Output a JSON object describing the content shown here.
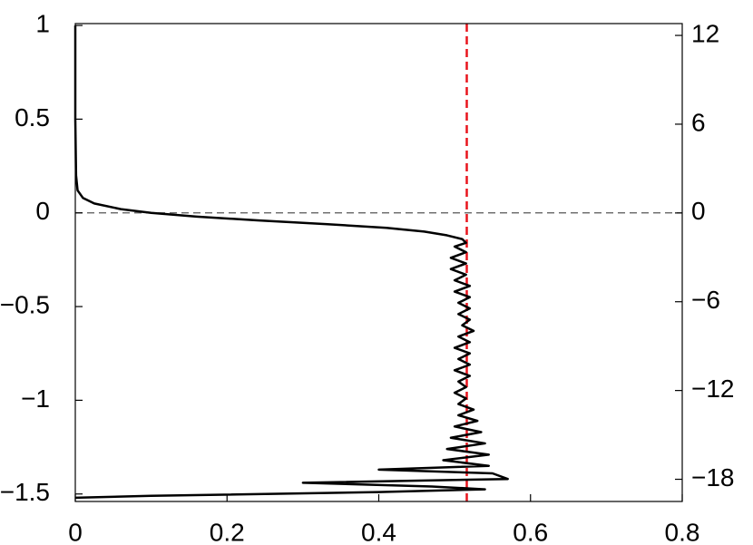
{
  "chart_data": {
    "type": "line",
    "x": [
      0,
      0,
      0.001,
      0.003,
      0.01,
      0.025,
      0.06,
      0.1,
      0.16,
      0.24,
      0.33,
      0.41,
      0.46,
      0.49,
      0.51,
      0.515,
      0.5,
      0.515,
      0.495,
      0.515,
      0.495,
      0.515,
      0.5,
      0.52,
      0.5,
      0.52,
      0.505,
      0.52,
      0.505,
      0.52,
      0.51,
      0.525,
      0.505,
      0.52,
      0.5,
      0.52,
      0.505,
      0.52,
      0.5,
      0.52,
      0.505,
      0.515,
      0.5,
      0.515,
      0.505,
      0.525,
      0.505,
      0.53,
      0.5,
      0.535,
      0.495,
      0.54,
      0.49,
      0.545,
      0.485,
      0.545,
      0.4,
      0.55,
      0.57,
      0.3,
      0.47,
      0.54,
      0.4,
      0.1,
      0
    ],
    "values": [
      1,
      0.5,
      0.2,
      0.12,
      0.08,
      0.05,
      0.02,
      0,
      -0.02,
      -0.04,
      -0.06,
      -0.08,
      -0.1,
      -0.12,
      -0.14,
      -0.16,
      -0.18,
      -0.21,
      -0.24,
      -0.27,
      -0.3,
      -0.33,
      -0.36,
      -0.39,
      -0.42,
      -0.45,
      -0.48,
      -0.51,
      -0.54,
      -0.57,
      -0.6,
      -0.63,
      -0.66,
      -0.69,
      -0.72,
      -0.75,
      -0.78,
      -0.81,
      -0.84,
      -0.87,
      -0.9,
      -0.93,
      -0.96,
      -0.99,
      -1.02,
      -1.05,
      -1.08,
      -1.11,
      -1.14,
      -1.17,
      -1.2,
      -1.23,
      -1.26,
      -1.29,
      -1.32,
      -1.35,
      -1.37,
      -1.39,
      -1.42,
      -1.44,
      -1.46,
      -1.475,
      -1.49,
      -1.51,
      -1.52
    ],
    "color": "#000000",
    "xlim": [
      0,
      0.8
    ],
    "xticks": [
      0,
      0.2,
      0.4,
      0.6,
      0.8
    ],
    "ylim": [
      -1.54,
      1.01
    ],
    "yticks": [
      1,
      0.5,
      0,
      {
        "value": -0.5,
        "label": "−0.5"
      },
      {
        "value": -1,
        "label": "−1"
      },
      {
        "value": -1.5,
        "label": "−1.5"
      }
    ],
    "y2lim": [
      -19.5,
      12.8
    ],
    "y2ticks": [
      12,
      6,
      0,
      {
        "value": -6,
        "label": "−6"
      },
      {
        "value": -12,
        "label": "−12"
      },
      {
        "value": -18,
        "label": "−18"
      }
    ],
    "vline": {
      "value": 0.516,
      "color": "#e8141c"
    },
    "hline": {
      "value": 0,
      "color": "#555555"
    }
  }
}
